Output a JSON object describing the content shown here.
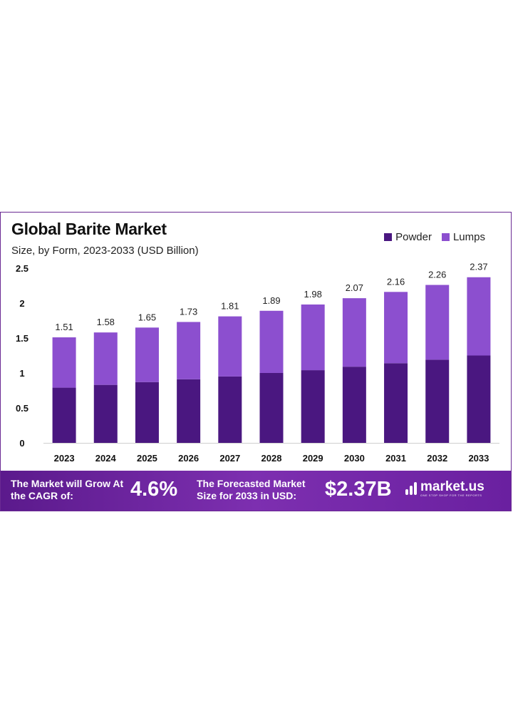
{
  "chart_data": {
    "type": "bar",
    "stacked": true,
    "title": "Global Barite Market",
    "subtitle": "Size, by Form, 2023-2033 (USD Billion)",
    "categories": [
      "2023",
      "2024",
      "2025",
      "2026",
      "2027",
      "2028",
      "2029",
      "2030",
      "2031",
      "2032",
      "2033"
    ],
    "totals": [
      "1.51",
      "1.58",
      "1.65",
      "1.73",
      "1.81",
      "1.89",
      "1.98",
      "2.07",
      "2.16",
      "2.26",
      "2.37"
    ],
    "series": [
      {
        "name": "Powder",
        "color": "#4a1780",
        "values": [
          0.79,
          0.83,
          0.87,
          0.91,
          0.95,
          1.0,
          1.04,
          1.09,
          1.14,
          1.19,
          1.25
        ]
      },
      {
        "name": "Lumps",
        "color": "#8c4fcf",
        "values": [
          0.72,
          0.75,
          0.78,
          0.82,
          0.86,
          0.89,
          0.94,
          0.98,
          1.02,
          1.07,
          1.12
        ]
      }
    ],
    "yticks": [
      "0",
      "0.5",
      "1",
      "1.5",
      "2",
      "2.5"
    ],
    "ylim": [
      0,
      2.5
    ],
    "legend_position": "top-right",
    "grid": false
  },
  "banner": {
    "cagr_label": "The Market will Grow At the CAGR of:",
    "cagr_value": "4.6%",
    "forecast_label": "The Forecasted Market Size for 2033 in USD:",
    "forecast_value": "$2.37B",
    "logo_name": "market.us",
    "logo_tagline": "ONE STOP SHOP FOR THE REPORTS"
  }
}
